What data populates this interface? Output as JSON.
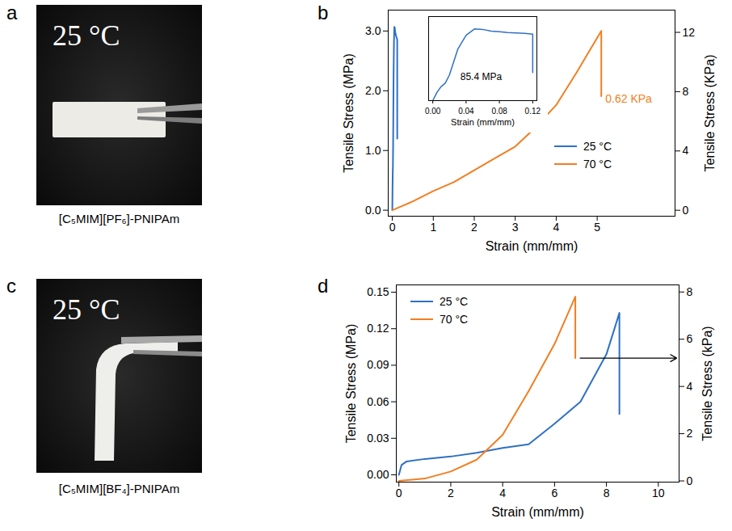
{
  "photos": [
    {
      "panel_letter": "a",
      "text": "25 °C",
      "caption": "[C₅MIM][PF₆]-PNIPAm"
    },
    {
      "panel_letter": "c",
      "text": "25 °C",
      "caption": "[C₅MIM][BF₄]-PNIPAm"
    }
  ],
  "chart_data": [
    {
      "panel_letter": "b",
      "type": "line",
      "xlabel": "Strain (mm/mm)",
      "ylabel": "Tensile Stress (MPa)",
      "y2label": "Tensile Stress (KPa)",
      "xlim": [
        -0.1,
        6.9
      ],
      "xticks": [
        0,
        1,
        2,
        3,
        4,
        5
      ],
      "ylim": [
        -0.1,
        3.35
      ],
      "yticks": [
        {
          "value": 0,
          "label": "0.0"
        },
        {
          "value": 1,
          "label": "1.0"
        },
        {
          "value": 2,
          "label": "2.0"
        },
        {
          "value": 3,
          "label": "3.0"
        }
      ],
      "y2lim": [
        -0.4,
        13.5
      ],
      "y2ticks": [
        0,
        4,
        8,
        12
      ],
      "legend": "right",
      "series": [
        {
          "name": "25 °C",
          "color": "#2f70c4",
          "x": [
            0,
            0.005,
            0.01,
            0.015,
            0.02,
            0.03,
            0.04,
            0.05,
            0.06,
            0.07,
            0.08,
            0.09,
            0.1,
            0.11,
            0.12,
            0.12
          ],
          "values": [
            0,
            0.35,
            0.6,
            0.75,
            1.1,
            2.2,
            2.8,
            3.07,
            3.05,
            2.98,
            2.95,
            2.92,
            2.9,
            2.88,
            2.85,
            1.2
          ]
        },
        {
          "name": "70 °C",
          "color": "#f07f22",
          "axis": "y2",
          "x": [
            0,
            0.5,
            1,
            1.5,
            2,
            2.5,
            3,
            3.5,
            4,
            4.5,
            5.1,
            5.1
          ],
          "values": [
            0,
            0.6,
            1.3,
            1.9,
            2.7,
            3.5,
            4.3,
            5.6,
            7.1,
            9.3,
            12.1,
            7.7
          ]
        }
      ],
      "annotations": [
        {
          "text": "0.62 KPa",
          "x": 5.2,
          "y": 7.5,
          "axis": "y2",
          "color": "#f07f22"
        }
      ],
      "inset": {
        "type": "line",
        "xlabel": "Strain (mm/mm)",
        "xlim": [
          -0.005,
          0.125
        ],
        "xticks": [
          {
            "value": 0,
            "label": "0.00"
          },
          {
            "value": 0.04,
            "label": "0.04"
          },
          {
            "value": 0.08,
            "label": "0.08"
          },
          {
            "value": 0.12,
            "label": "0.12"
          }
        ],
        "ylim": [
          0,
          3.6
        ],
        "tick_labels": "x",
        "series": [
          {
            "color": "#2f70c4",
            "x": [
              0,
              0.005,
              0.01,
              0.015,
              0.02,
              0.03,
              0.04,
              0.05,
              0.06,
              0.07,
              0.08,
              0.09,
              0.1,
              0.11,
              0.12,
              0.12
            ],
            "values": [
              0,
              0.35,
              0.6,
              0.75,
              1.1,
              2.2,
              2.8,
              3.07,
              3.05,
              2.98,
              2.95,
              2.92,
              2.9,
              2.88,
              2.85,
              1.2
            ]
          }
        ],
        "annotations": [
          {
            "text": "85.4 MPa",
            "x": 0.058,
            "y": 1.0
          }
        ]
      }
    },
    {
      "panel_letter": "d",
      "type": "line",
      "xlabel": "Strain (mm/mm)",
      "ylabel": "Tensile Stress (MPa)",
      "y2label": "Tensile Stress (kPa)",
      "xlim": [
        -0.1,
        10.8
      ],
      "xticks": [
        0,
        2,
        4,
        6,
        8,
        10
      ],
      "ylim": [
        -0.006,
        0.156
      ],
      "yticks": [
        {
          "value": 0,
          "label": "0.00"
        },
        {
          "value": 0.03,
          "label": "0.03"
        },
        {
          "value": 0.06,
          "label": "0.06"
        },
        {
          "value": 0.09,
          "label": "0.09"
        },
        {
          "value": 0.12,
          "label": "0.12"
        },
        {
          "value": 0.15,
          "label": "0.15"
        }
      ],
      "y2lim": [
        -0.05,
        8.3
      ],
      "y2ticks": [
        0,
        2,
        4,
        6,
        8
      ],
      "legend": "top-left",
      "series": [
        {
          "name": "25 °C",
          "color": "#2f70c4",
          "x": [
            0,
            0.1,
            0.3,
            1,
            2,
            3,
            4,
            5,
            6,
            7,
            8,
            8.5,
            8.5
          ],
          "values": [
            0,
            0.008,
            0.011,
            0.013,
            0.015,
            0.018,
            0.022,
            0.025,
            0.042,
            0.06,
            0.099,
            0.133,
            0.05
          ]
        },
        {
          "name": "70 °C",
          "color": "#f07f22",
          "axis": "y2",
          "x": [
            0,
            1,
            2,
            3,
            4,
            5,
            6,
            6.8,
            6.8
          ],
          "values": [
            0,
            0.1,
            0.4,
            0.9,
            1.95,
            3.8,
            5.8,
            7.8,
            5.2
          ]
        }
      ]
    }
  ]
}
